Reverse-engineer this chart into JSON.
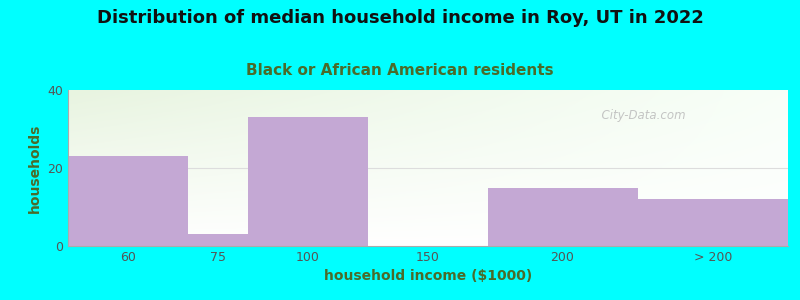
{
  "title": "Distribution of median household income in Roy, UT in 2022",
  "subtitle": "Black or African American residents",
  "xlabel": "household income ($1000)",
  "ylabel": "households",
  "background_outer": "#00FFFF",
  "bar_categories": [
    "60",
    "75",
    "100",
    "150",
    "200",
    "> 200"
  ],
  "bar_values": [
    23,
    3,
    33,
    0,
    15,
    12
  ],
  "bar_colors": [
    "#C4A8D4",
    "#C4A8D4",
    "#C4A8D4",
    "#C4A8D4",
    "#C4A8D4",
    "#C4A8D4"
  ],
  "ylim": [
    0,
    40
  ],
  "yticks": [
    0,
    20,
    40
  ],
  "title_fontsize": 13,
  "subtitle_fontsize": 11,
  "axis_label_fontsize": 10,
  "tick_fontsize": 9,
  "plot_bg_color_topleft": "#E8F4E0",
  "plot_bg_color_right": "#F8FFF8",
  "plot_bg_color_bottom": "#FFFFFF",
  "watermark_text": "  City-Data.com",
  "grid_color": "#DDDDDD",
  "title_color": "#111111",
  "subtitle_color": "#4A6B2A",
  "axis_label_color": "#4A6B2A",
  "tick_color": "#555555"
}
